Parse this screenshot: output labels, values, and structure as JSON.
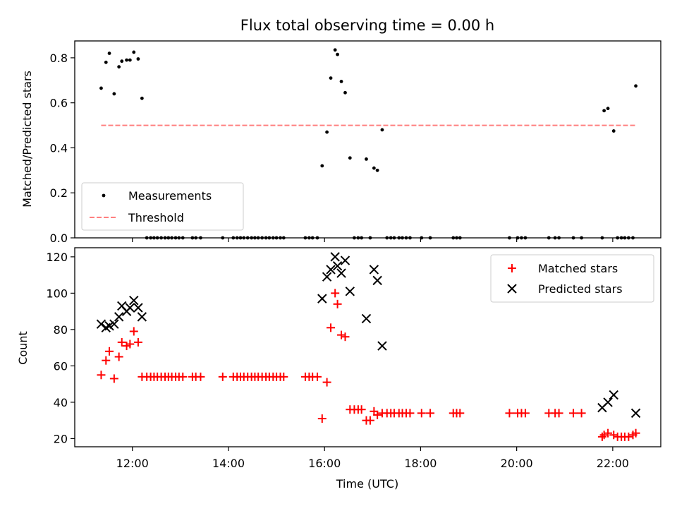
{
  "chart_data": [
    {
      "type": "scatter",
      "title": "Flux total observing time = 0.00 h",
      "ylabel": "Matched/Predicted stars",
      "xlabel": "",
      "xlim": [
        10.8,
        23.0
      ],
      "ylim": [
        0,
        0.875
      ],
      "y_ticks": [
        0,
        0.2,
        0.4,
        0.6,
        0.8
      ],
      "y_tick_labels": [
        "0.0",
        "0.2",
        "0.4",
        "0.6",
        "0.8"
      ],
      "legend": {
        "placement": "lower-left",
        "entries": [
          "Measurements",
          "Threshold"
        ]
      },
      "series": [
        {
          "name": "Measurements",
          "kind": "dots",
          "color": "#000000",
          "points": [
            [
              11.35,
              0.665
            ],
            [
              11.45,
              0.78
            ],
            [
              11.52,
              0.82
            ],
            [
              11.62,
              0.64
            ],
            [
              11.72,
              0.76
            ],
            [
              11.78,
              0.785
            ],
            [
              11.88,
              0.79
            ],
            [
              11.95,
              0.79
            ],
            [
              12.03,
              0.825
            ],
            [
              12.12,
              0.795
            ],
            [
              12.2,
              0.62
            ],
            [
              12.3,
              0.0
            ],
            [
              12.38,
              0.0
            ],
            [
              12.45,
              0.0
            ],
            [
              12.52,
              0.0
            ],
            [
              12.6,
              0.0
            ],
            [
              12.68,
              0.0
            ],
            [
              12.75,
              0.0
            ],
            [
              12.82,
              0.0
            ],
            [
              12.9,
              0.0
            ],
            [
              12.97,
              0.0
            ],
            [
              13.05,
              0.0
            ],
            [
              13.25,
              0.0
            ],
            [
              13.32,
              0.0
            ],
            [
              13.42,
              0.0
            ],
            [
              13.88,
              0.0
            ],
            [
              14.1,
              0.0
            ],
            [
              14.18,
              0.0
            ],
            [
              14.25,
              0.0
            ],
            [
              14.32,
              0.0
            ],
            [
              14.4,
              0.0
            ],
            [
              14.48,
              0.0
            ],
            [
              14.55,
              0.0
            ],
            [
              14.62,
              0.0
            ],
            [
              14.7,
              0.0
            ],
            [
              14.78,
              0.0
            ],
            [
              14.85,
              0.0
            ],
            [
              14.93,
              0.0
            ],
            [
              15.0,
              0.0
            ],
            [
              15.08,
              0.0
            ],
            [
              15.15,
              0.0
            ],
            [
              15.6,
              0.0
            ],
            [
              15.68,
              0.0
            ],
            [
              15.75,
              0.0
            ],
            [
              15.85,
              0.0
            ],
            [
              15.95,
              0.32
            ],
            [
              16.05,
              0.47
            ],
            [
              16.13,
              0.71
            ],
            [
              16.22,
              0.835
            ],
            [
              16.27,
              0.815
            ],
            [
              16.35,
              0.695
            ],
            [
              16.43,
              0.645
            ],
            [
              16.53,
              0.355
            ],
            [
              16.62,
              0.0
            ],
            [
              16.7,
              0.0
            ],
            [
              16.77,
              0.0
            ],
            [
              16.87,
              0.35
            ],
            [
              16.95,
              0.0
            ],
            [
              17.03,
              0.31
            ],
            [
              17.1,
              0.3
            ],
            [
              17.2,
              0.48
            ],
            [
              17.3,
              0.0
            ],
            [
              17.38,
              0.0
            ],
            [
              17.45,
              0.0
            ],
            [
              17.55,
              0.0
            ],
            [
              17.62,
              0.0
            ],
            [
              17.7,
              0.0
            ],
            [
              17.78,
              0.0
            ],
            [
              18.02,
              0.0
            ],
            [
              18.2,
              0.0
            ],
            [
              18.68,
              0.0
            ],
            [
              18.75,
              0.0
            ],
            [
              18.82,
              0.0
            ],
            [
              19.85,
              0.0
            ],
            [
              20.02,
              0.0
            ],
            [
              20.1,
              0.0
            ],
            [
              20.18,
              0.0
            ],
            [
              20.67,
              0.0
            ],
            [
              20.8,
              0.0
            ],
            [
              20.88,
              0.0
            ],
            [
              21.18,
              0.0
            ],
            [
              21.35,
              0.0
            ],
            [
              21.78,
              0.0
            ],
            [
              21.82,
              0.565
            ],
            [
              21.9,
              0.575
            ],
            [
              22.02,
              0.475
            ],
            [
              22.1,
              0.0
            ],
            [
              22.18,
              0.0
            ],
            [
              22.25,
              0.0
            ],
            [
              22.33,
              0.0
            ],
            [
              22.42,
              0.0
            ],
            [
              22.48,
              0.675
            ]
          ]
        },
        {
          "name": "Threshold",
          "kind": "dashed-line",
          "color": "#ff7f7f",
          "points": [
            [
              11.35,
              0.5
            ],
            [
              22.48,
              0.5
            ]
          ]
        }
      ]
    },
    {
      "type": "scatter",
      "title": "",
      "ylabel": "Count",
      "xlabel": "Time (UTC)",
      "xlim": [
        10.8,
        23.0
      ],
      "ylim": [
        15.5,
        125
      ],
      "y_ticks": [
        20,
        40,
        60,
        80,
        100,
        120
      ],
      "y_tick_labels": [
        "20",
        "40",
        "60",
        "80",
        "100",
        "120"
      ],
      "x_ticks": [
        12,
        14,
        16,
        18,
        20,
        22
      ],
      "x_tick_labels": [
        "12:00",
        "14:00",
        "16:00",
        "18:00",
        "20:00",
        "22:00"
      ],
      "legend": {
        "placement": "upper-right",
        "entries": [
          "Matched stars",
          "Predicted stars"
        ]
      },
      "series": [
        {
          "name": "Matched stars",
          "kind": "plus",
          "color": "#ff0000",
          "points": [
            [
              11.35,
              55
            ],
            [
              11.45,
              63
            ],
            [
              11.52,
              68
            ],
            [
              11.62,
              53
            ],
            [
              11.72,
              65
            ],
            [
              11.78,
              73
            ],
            [
              11.88,
              71
            ],
            [
              11.95,
              72
            ],
            [
              12.03,
              79
            ],
            [
              12.12,
              73
            ],
            [
              12.2,
              54
            ],
            [
              12.3,
              54
            ],
            [
              12.38,
              54
            ],
            [
              12.45,
              54
            ],
            [
              12.52,
              54
            ],
            [
              12.6,
              54
            ],
            [
              12.68,
              54
            ],
            [
              12.75,
              54
            ],
            [
              12.82,
              54
            ],
            [
              12.9,
              54
            ],
            [
              12.97,
              54
            ],
            [
              13.05,
              54
            ],
            [
              13.25,
              54
            ],
            [
              13.32,
              54
            ],
            [
              13.42,
              54
            ],
            [
              13.88,
              54
            ],
            [
              14.1,
              54
            ],
            [
              14.18,
              54
            ],
            [
              14.25,
              54
            ],
            [
              14.32,
              54
            ],
            [
              14.4,
              54
            ],
            [
              14.48,
              54
            ],
            [
              14.55,
              54
            ],
            [
              14.62,
              54
            ],
            [
              14.7,
              54
            ],
            [
              14.78,
              54
            ],
            [
              14.85,
              54
            ],
            [
              14.93,
              54
            ],
            [
              15.0,
              54
            ],
            [
              15.08,
              54
            ],
            [
              15.15,
              54
            ],
            [
              15.6,
              54
            ],
            [
              15.68,
              54
            ],
            [
              15.75,
              54
            ],
            [
              15.85,
              54
            ],
            [
              15.95,
              31
            ],
            [
              16.05,
              51
            ],
            [
              16.13,
              81
            ],
            [
              16.22,
              100
            ],
            [
              16.27,
              94
            ],
            [
              16.35,
              77
            ],
            [
              16.43,
              76
            ],
            [
              16.53,
              36
            ],
            [
              16.62,
              36
            ],
            [
              16.7,
              36
            ],
            [
              16.77,
              36
            ],
            [
              16.87,
              30
            ],
            [
              16.95,
              30
            ],
            [
              17.03,
              35
            ],
            [
              17.1,
              33
            ],
            [
              17.2,
              34
            ],
            [
              17.3,
              34
            ],
            [
              17.38,
              34
            ],
            [
              17.45,
              34
            ],
            [
              17.55,
              34
            ],
            [
              17.62,
              34
            ],
            [
              17.7,
              34
            ],
            [
              17.78,
              34
            ],
            [
              18.02,
              34
            ],
            [
              18.2,
              34
            ],
            [
              18.68,
              34
            ],
            [
              18.75,
              34
            ],
            [
              18.82,
              34
            ],
            [
              19.85,
              34
            ],
            [
              20.02,
              34
            ],
            [
              20.1,
              34
            ],
            [
              20.18,
              34
            ],
            [
              20.67,
              34
            ],
            [
              20.8,
              34
            ],
            [
              20.88,
              34
            ],
            [
              21.18,
              34
            ],
            [
              21.35,
              34
            ],
            [
              21.78,
              21
            ],
            [
              21.82,
              22
            ],
            [
              21.9,
              23
            ],
            [
              22.02,
              22
            ],
            [
              22.1,
              21
            ],
            [
              22.18,
              21
            ],
            [
              22.25,
              21
            ],
            [
              22.33,
              21
            ],
            [
              22.42,
              22
            ],
            [
              22.48,
              23
            ]
          ]
        },
        {
          "name": "Predicted stars",
          "kind": "cross",
          "color": "#000000",
          "points": [
            [
              11.35,
              83
            ],
            [
              11.45,
              81
            ],
            [
              11.52,
              82
            ],
            [
              11.62,
              83
            ],
            [
              11.72,
              87
            ],
            [
              11.78,
              93
            ],
            [
              11.88,
              90
            ],
            [
              11.95,
              92
            ],
            [
              12.03,
              96
            ],
            [
              12.12,
              92
            ],
            [
              12.2,
              87
            ],
            [
              15.95,
              97
            ],
            [
              16.05,
              109
            ],
            [
              16.13,
              113
            ],
            [
              16.22,
              120
            ],
            [
              16.27,
              115
            ],
            [
              16.35,
              111
            ],
            [
              16.43,
              118
            ],
            [
              16.53,
              101
            ],
            [
              16.87,
              86
            ],
            [
              17.03,
              113
            ],
            [
              17.1,
              107
            ],
            [
              17.2,
              71
            ],
            [
              21.78,
              37
            ],
            [
              21.9,
              40
            ],
            [
              22.02,
              44
            ],
            [
              22.48,
              34
            ]
          ]
        }
      ]
    }
  ]
}
